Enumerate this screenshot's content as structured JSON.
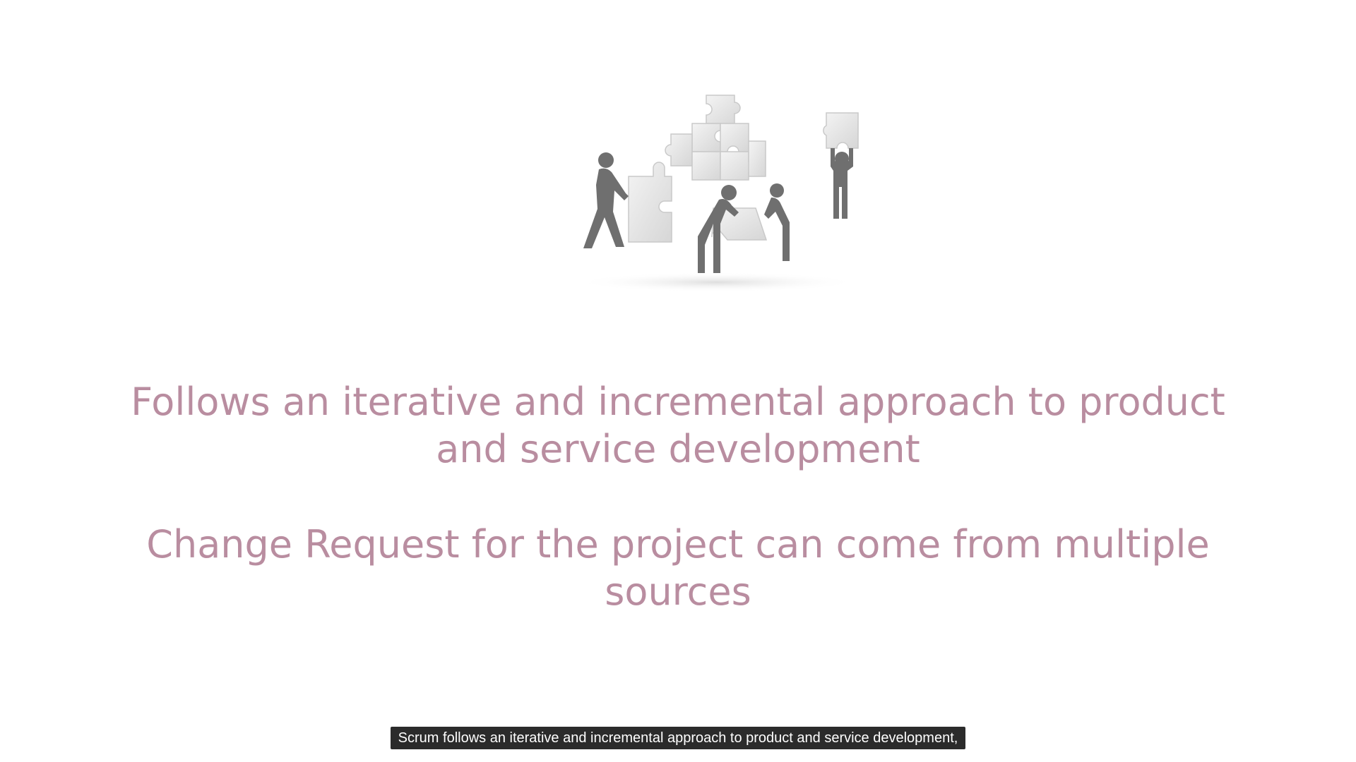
{
  "slide": {
    "bullets": [
      {
        "lines": [
          "Follows an iterative and incremental approach to product",
          "and service development"
        ]
      },
      {
        "lines": [
          "Change Request for the project can come from multiple",
          "sources"
        ]
      }
    ],
    "text_color": "#b98da0",
    "illustration_icon": "teamwork-puzzle-figures-icon"
  },
  "subtitle": {
    "text": "Scrum follows an iterative and incremental approach to product and service development,"
  }
}
